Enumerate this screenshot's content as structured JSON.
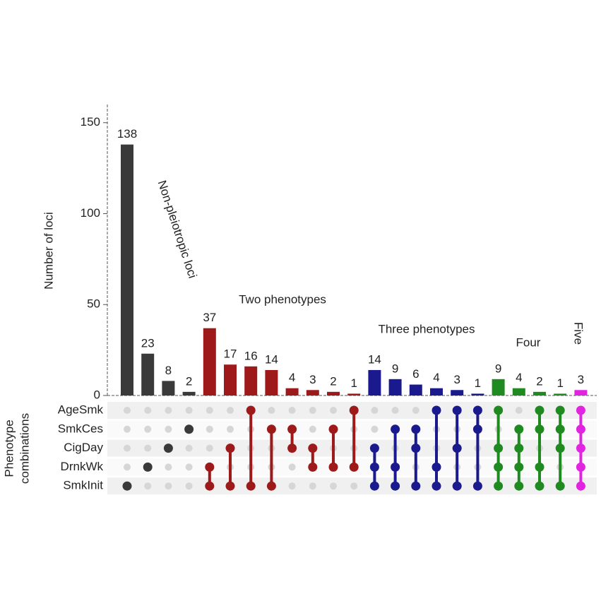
{
  "chart_data": {
    "type": "upset",
    "y_label": "Number of loci",
    "matrix_label": [
      "Phenotype",
      "combinations"
    ],
    "sets": [
      "AgeSmk",
      "SmkCes",
      "CigDay",
      "DrnkWk",
      "SmkInit"
    ],
    "values": [
      138,
      23,
      8,
      2,
      37,
      17,
      16,
      14,
      4,
      3,
      2,
      1,
      14,
      9,
      6,
      4,
      3,
      1,
      9,
      4,
      2,
      1,
      3
    ],
    "memberships": [
      [
        4
      ],
      [
        3
      ],
      [
        2
      ],
      [
        1
      ],
      [
        3,
        4
      ],
      [
        2,
        4
      ],
      [
        0,
        4
      ],
      [
        1,
        4
      ],
      [
        1,
        2
      ],
      [
        2,
        3
      ],
      [
        1,
        3
      ],
      [
        0,
        3
      ],
      [
        2,
        3,
        4
      ],
      [
        1,
        3,
        4
      ],
      [
        1,
        2,
        4
      ],
      [
        0,
        3,
        4
      ],
      [
        0,
        2,
        4
      ],
      [
        0,
        1,
        4
      ],
      [
        0,
        2,
        3,
        4
      ],
      [
        1,
        2,
        3,
        4
      ],
      [
        0,
        1,
        3,
        4
      ],
      [
        0,
        1,
        2,
        4
      ],
      [
        0,
        1,
        2,
        3,
        4
      ]
    ],
    "colors": [
      "#3a3a3a",
      "#3a3a3a",
      "#3a3a3a",
      "#3a3a3a",
      "#9e1a1a",
      "#9e1a1a",
      "#9e1a1a",
      "#9e1a1a",
      "#9e1a1a",
      "#9e1a1a",
      "#9e1a1a",
      "#9e1a1a",
      "#1a1a8e",
      "#1a1a8e",
      "#1a1a8e",
      "#1a1a8e",
      "#1a1a8e",
      "#1a1a8e",
      "#1f8a1f",
      "#1f8a1f",
      "#1f8a1f",
      "#1f8a1f",
      "#e024e0"
    ],
    "annotations": [
      "Non-pleiotropic loci",
      "Two phenotypes",
      "Three phenotypes",
      "Four",
      "Five"
    ],
    "ylim": [
      0,
      160
    ],
    "yticks": [
      0,
      50,
      100,
      150
    ]
  }
}
